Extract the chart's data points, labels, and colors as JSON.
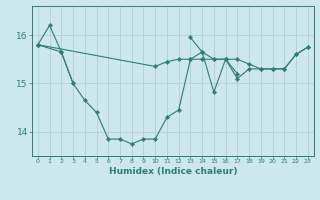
{
  "x": [
    0,
    1,
    2,
    3,
    4,
    5,
    6,
    7,
    8,
    9,
    10,
    11,
    12,
    13,
    14,
    15,
    16,
    17,
    18,
    19,
    20,
    21,
    22,
    23
  ],
  "line1": [
    15.8,
    16.2,
    15.65,
    15.0,
    null,
    null,
    null,
    null,
    null,
    null,
    null,
    null,
    null,
    null,
    null,
    null,
    null,
    null,
    null,
    null,
    null,
    null,
    null,
    null
  ],
  "line2": [
    15.8,
    null,
    15.65,
    15.0,
    14.65,
    14.4,
    13.85,
    13.85,
    13.75,
    13.85,
    13.85,
    14.3,
    14.45,
    15.5,
    15.5,
    15.5,
    15.5,
    15.5,
    15.4,
    15.3,
    15.3,
    15.3,
    15.6,
    15.75
  ],
  "line3": [
    15.8,
    null,
    null,
    null,
    null,
    null,
    null,
    null,
    null,
    null,
    15.35,
    15.45,
    15.5,
    15.5,
    15.65,
    15.5,
    15.5,
    15.1,
    15.3,
    15.3,
    15.3,
    15.3,
    15.6,
    15.75
  ],
  "line4": [
    null,
    null,
    null,
    null,
    null,
    null,
    null,
    null,
    null,
    null,
    null,
    null,
    null,
    15.95,
    15.65,
    14.82,
    15.5,
    15.2,
    null,
    null,
    null,
    null,
    null,
    null
  ],
  "background_color": "#cce8ea",
  "grid_color": "#aacccc",
  "line_color": "#2e7d6e",
  "xlabel": "Humidex (Indice chaleur)",
  "yticks": [
    14,
    15,
    16
  ],
  "ylim": [
    13.5,
    16.6
  ],
  "xlim": [
    -0.5,
    23.5
  ],
  "xtick_labels": [
    "0",
    "1",
    "2",
    "3",
    "4",
    "5",
    "6",
    "7",
    "8",
    "9",
    "10",
    "11",
    "12",
    "13",
    "14",
    "15",
    "16",
    "17",
    "18",
    "19",
    "20",
    "21",
    "22",
    "23"
  ],
  "marker_size": 2.2,
  "lw": 0.8
}
